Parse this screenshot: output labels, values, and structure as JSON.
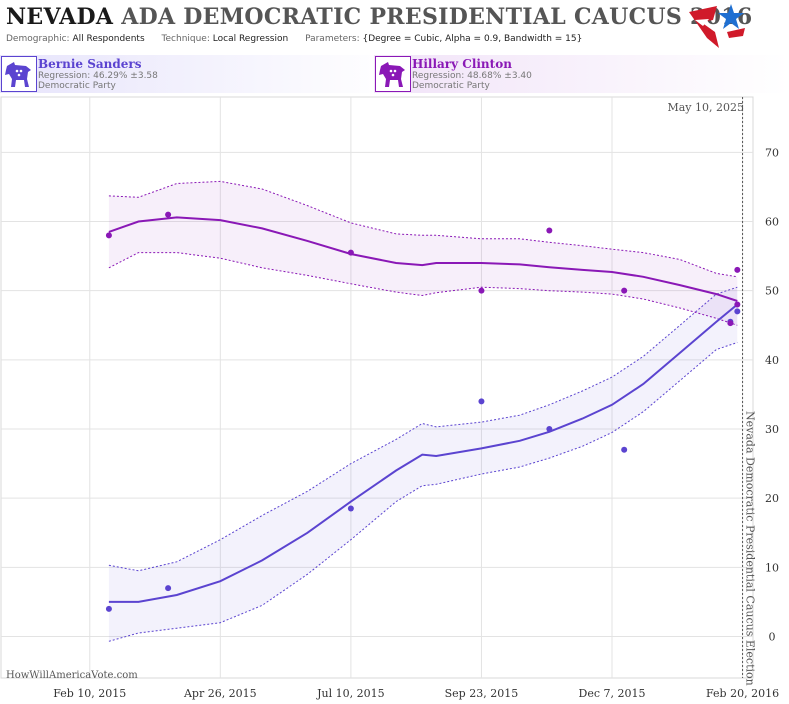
{
  "header": {
    "title_state": "NEVADA",
    "title_rest": " ADA DEMOCRATIC PRESIDENTIAL CAUCUS 2016",
    "demographic_key": "Demographic:",
    "demographic_value": "All Respondents",
    "technique_key": "Technique:",
    "technique_value": "Local Regression",
    "parameters_key": "Parameters:",
    "parameters_value": "{Degree = Cubic, Alpha = 0.9, Bandwidth = 15}",
    "logo_icon": "star-flag-logo-icon"
  },
  "candidates": [
    {
      "name": "Bernie Sanders",
      "regression": "Regression: 46.29% ±3.58",
      "party": "Democratic Party",
      "color": "#5b44d0",
      "icon": "donkey-icon"
    },
    {
      "name": "Hillary Clinton",
      "regression": "Regression: 48.68% ±3.40",
      "party": "Democratic Party",
      "color": "#8a18b6",
      "icon": "donkey-icon"
    }
  ],
  "chart_data": {
    "type": "line",
    "date_label": "May 10, 2025",
    "watermark": "HowWillAmericaVote.com",
    "event_label": "Nevada Democratic Presidential Caucus Election",
    "event_date": "2016-02-20",
    "x_range": [
      "2014-12-21",
      "2016-02-26"
    ],
    "ylim": [
      -6,
      78
    ],
    "x_ticks": [
      {
        "label": "Feb 10, 2015",
        "date": "2015-02-10"
      },
      {
        "label": "Apr 26, 2015",
        "date": "2015-04-26"
      },
      {
        "label": "Jul 10, 2015",
        "date": "2015-07-10"
      },
      {
        "label": "Sep 23, 2015",
        "date": "2015-09-23"
      },
      {
        "label": "Dec 7, 2015",
        "date": "2015-12-07"
      },
      {
        "label": "Feb 20, 2016",
        "date": "2016-02-20"
      }
    ],
    "y_ticks": [
      0,
      10,
      20,
      30,
      40,
      50,
      60,
      70
    ],
    "series": [
      {
        "name": "Bernie Sanders",
        "color": "#5b44d0",
        "points": [
          {
            "date": "2015-02-21",
            "value": 4.0
          },
          {
            "date": "2015-03-27",
            "value": 7.0
          },
          {
            "date": "2015-07-10",
            "value": 18.5
          },
          {
            "date": "2015-09-23",
            "value": 34.0
          },
          {
            "date": "2015-11-01",
            "value": 30.0
          },
          {
            "date": "2015-12-14",
            "value": 27.0
          },
          {
            "date": "2016-02-13",
            "value": 45.5
          },
          {
            "date": "2016-02-17",
            "value": 47.0
          }
        ],
        "trend": [
          {
            "date": "2015-02-21",
            "value": 5.0
          },
          {
            "date": "2015-03-10",
            "value": 5.0
          },
          {
            "date": "2015-04-01",
            "value": 6.0
          },
          {
            "date": "2015-04-26",
            "value": 8.0
          },
          {
            "date": "2015-05-20",
            "value": 11.0
          },
          {
            "date": "2015-06-15",
            "value": 15.0
          },
          {
            "date": "2015-07-10",
            "value": 19.5
          },
          {
            "date": "2015-08-05",
            "value": 24.0
          },
          {
            "date": "2015-08-20",
            "value": 26.3
          },
          {
            "date": "2015-08-28",
            "value": 26.1
          },
          {
            "date": "2015-09-23",
            "value": 27.2
          },
          {
            "date": "2015-10-15",
            "value": 28.3
          },
          {
            "date": "2015-11-01",
            "value": 29.6
          },
          {
            "date": "2015-11-20",
            "value": 31.5
          },
          {
            "date": "2015-12-07",
            "value": 33.5
          },
          {
            "date": "2015-12-25",
            "value": 36.5
          },
          {
            "date": "2016-01-15",
            "value": 41.0
          },
          {
            "date": "2016-02-05",
            "value": 45.5
          },
          {
            "date": "2016-02-17",
            "value": 48.0
          }
        ],
        "band": [
          {
            "date": "2015-02-21",
            "lower": -0.7,
            "upper": 10.3
          },
          {
            "date": "2015-03-10",
            "lower": 0.5,
            "upper": 9.5
          },
          {
            "date": "2015-04-01",
            "lower": 1.2,
            "upper": 10.8
          },
          {
            "date": "2015-04-26",
            "lower": 2.0,
            "upper": 14.0
          },
          {
            "date": "2015-05-20",
            "lower": 4.5,
            "upper": 17.5
          },
          {
            "date": "2015-06-15",
            "lower": 9.0,
            "upper": 21.0
          },
          {
            "date": "2015-07-10",
            "lower": 14.0,
            "upper": 25.0
          },
          {
            "date": "2015-08-05",
            "lower": 19.5,
            "upper": 28.5
          },
          {
            "date": "2015-08-20",
            "lower": 21.8,
            "upper": 30.8
          },
          {
            "date": "2015-08-28",
            "lower": 22.0,
            "upper": 30.3
          },
          {
            "date": "2015-09-23",
            "lower": 23.5,
            "upper": 31.0
          },
          {
            "date": "2015-10-15",
            "lower": 24.5,
            "upper": 32.0
          },
          {
            "date": "2015-11-01",
            "lower": 25.8,
            "upper": 33.5
          },
          {
            "date": "2015-11-20",
            "lower": 27.5,
            "upper": 35.5
          },
          {
            "date": "2015-12-07",
            "lower": 29.5,
            "upper": 37.5
          },
          {
            "date": "2015-12-25",
            "lower": 32.5,
            "upper": 40.5
          },
          {
            "date": "2016-01-15",
            "lower": 37.0,
            "upper": 45.0
          },
          {
            "date": "2016-02-05",
            "lower": 41.5,
            "upper": 49.5
          },
          {
            "date": "2016-02-17",
            "lower": 42.5,
            "upper": 50.5
          }
        ]
      },
      {
        "name": "Hillary Clinton",
        "color": "#8a18b6",
        "points": [
          {
            "date": "2015-02-21",
            "value": 58.0
          },
          {
            "date": "2015-03-27",
            "value": 61.0
          },
          {
            "date": "2015-07-10",
            "value": 55.5
          },
          {
            "date": "2015-09-23",
            "value": 50.0
          },
          {
            "date": "2015-11-01",
            "value": 58.7
          },
          {
            "date": "2015-12-14",
            "value": 50.0
          },
          {
            "date": "2016-02-13",
            "value": 45.3
          },
          {
            "date": "2016-02-17",
            "value": 53.0
          },
          {
            "date": "2016-02-17",
            "value": 48.0
          }
        ],
        "trend": [
          {
            "date": "2015-02-21",
            "value": 58.5
          },
          {
            "date": "2015-03-10",
            "value": 60.0
          },
          {
            "date": "2015-04-01",
            "value": 60.6
          },
          {
            "date": "2015-04-26",
            "value": 60.2
          },
          {
            "date": "2015-05-20",
            "value": 59.0
          },
          {
            "date": "2015-06-15",
            "value": 57.2
          },
          {
            "date": "2015-07-10",
            "value": 55.3
          },
          {
            "date": "2015-08-05",
            "value": 54.0
          },
          {
            "date": "2015-08-20",
            "value": 53.7
          },
          {
            "date": "2015-08-28",
            "value": 54.0
          },
          {
            "date": "2015-09-23",
            "value": 54.0
          },
          {
            "date": "2015-10-15",
            "value": 53.8
          },
          {
            "date": "2015-11-01",
            "value": 53.4
          },
          {
            "date": "2015-11-20",
            "value": 53.0
          },
          {
            "date": "2015-12-07",
            "value": 52.7
          },
          {
            "date": "2015-12-25",
            "value": 52.0
          },
          {
            "date": "2016-01-15",
            "value": 50.8
          },
          {
            "date": "2016-02-05",
            "value": 49.5
          },
          {
            "date": "2016-02-17",
            "value": 48.5
          }
        ],
        "band": [
          {
            "date": "2015-02-21",
            "lower": 53.3,
            "upper": 63.7
          },
          {
            "date": "2015-03-10",
            "lower": 55.5,
            "upper": 63.5
          },
          {
            "date": "2015-04-01",
            "lower": 55.5,
            "upper": 65.5
          },
          {
            "date": "2015-04-26",
            "lower": 54.7,
            "upper": 65.8
          },
          {
            "date": "2015-05-20",
            "lower": 53.3,
            "upper": 64.7
          },
          {
            "date": "2015-06-15",
            "lower": 52.2,
            "upper": 62.3
          },
          {
            "date": "2015-07-10",
            "lower": 51.0,
            "upper": 59.8
          },
          {
            "date": "2015-08-05",
            "lower": 49.8,
            "upper": 58.2
          },
          {
            "date": "2015-08-20",
            "lower": 49.3,
            "upper": 58.0
          },
          {
            "date": "2015-08-28",
            "lower": 49.7,
            "upper": 58.0
          },
          {
            "date": "2015-09-23",
            "lower": 50.5,
            "upper": 57.5
          },
          {
            "date": "2015-10-15",
            "lower": 50.3,
            "upper": 57.5
          },
          {
            "date": "2015-11-01",
            "lower": 50.0,
            "upper": 57.0
          },
          {
            "date": "2015-11-20",
            "lower": 49.8,
            "upper": 56.5
          },
          {
            "date": "2015-12-07",
            "lower": 49.5,
            "upper": 56.0
          },
          {
            "date": "2015-12-25",
            "lower": 48.8,
            "upper": 55.5
          },
          {
            "date": "2016-01-15",
            "lower": 47.5,
            "upper": 54.5
          },
          {
            "date": "2016-02-05",
            "lower": 46.0,
            "upper": 52.5
          },
          {
            "date": "2016-02-17",
            "lower": 45.0,
            "upper": 52.0
          }
        ]
      }
    ]
  }
}
